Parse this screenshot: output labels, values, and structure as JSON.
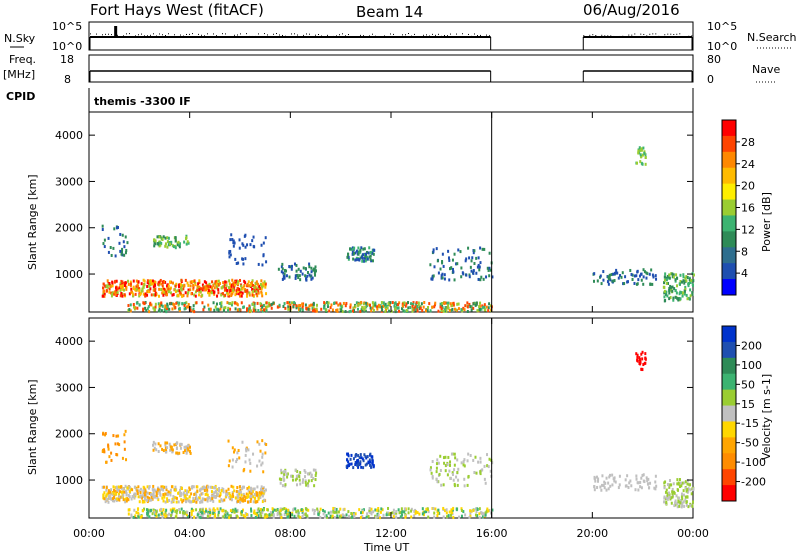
{
  "header": {
    "title": "Fort Hays West (fitACF)",
    "beam": "Beam 14",
    "date": "06/Aug/2016"
  },
  "strips": {
    "nsky_label": "N.Sky",
    "nsky_ticks": [
      "10^5",
      "10^0"
    ],
    "nsearch_label": "N.Search",
    "nsearch_ticks": [
      "10^5",
      "10^0"
    ],
    "freq_label_top": "Freq.",
    "freq_label_bottom": "[MHz]",
    "freq_ticks": [
      "18",
      "8"
    ],
    "nave_label": "Nave",
    "nave_ticks": [
      "80",
      "0"
    ],
    "cpid_label": "CPID",
    "cpid_value": "themis -3300 IF"
  },
  "chart_data": [
    {
      "type": "heatmap",
      "name": "power-panel",
      "ylabel": "Slant Range [km]",
      "xlabel": "",
      "ylim": [
        180,
        4500
      ],
      "xlim_hours": [
        0,
        24
      ],
      "x_ticks": [
        "00:00",
        "04:00",
        "08:00",
        "12:00",
        "16:00",
        "20:00",
        "00:00"
      ],
      "y_ticks": [
        1000,
        2000,
        3000,
        4000
      ],
      "colorbar": {
        "label": "Power [dB]",
        "ticks": [
          "28",
          "24",
          "20",
          "16",
          "12",
          "8",
          "4"
        ],
        "colors": [
          "#ff0000",
          "#ff4400",
          "#ff8800",
          "#ffbb00",
          "#ffee00",
          "#9acd32",
          "#3cb371",
          "#2e8b57",
          "#2e6e8e",
          "#1f4fb0",
          "#0000ff"
        ]
      },
      "data_gap_hours": [
        16.0,
        19.6
      ]
    },
    {
      "type": "heatmap",
      "name": "velocity-panel",
      "ylabel": "Slant Range [km]",
      "xlabel": "Time UT",
      "ylim": [
        180,
        4500
      ],
      "xlim_hours": [
        0,
        24
      ],
      "x_ticks": [
        "00:00",
        "04:00",
        "08:00",
        "12:00",
        "16:00",
        "20:00",
        "00:00"
      ],
      "y_ticks": [
        1000,
        2000,
        3000,
        4000
      ],
      "colorbar": {
        "label": "Velocity [m s-1]",
        "ticks": [
          "200",
          "100",
          "50",
          "15",
          "-15",
          "-50",
          "-100",
          "-200"
        ],
        "colors": [
          "#0033cc",
          "#1f4fb0",
          "#2e8b57",
          "#3cb371",
          "#9acd32",
          "#c0c0c0",
          "#ffd700",
          "#ffa500",
          "#ff8c00",
          "#ff4500",
          "#ff0000"
        ]
      },
      "data_gap_hours": [
        16.0,
        19.6
      ]
    }
  ]
}
